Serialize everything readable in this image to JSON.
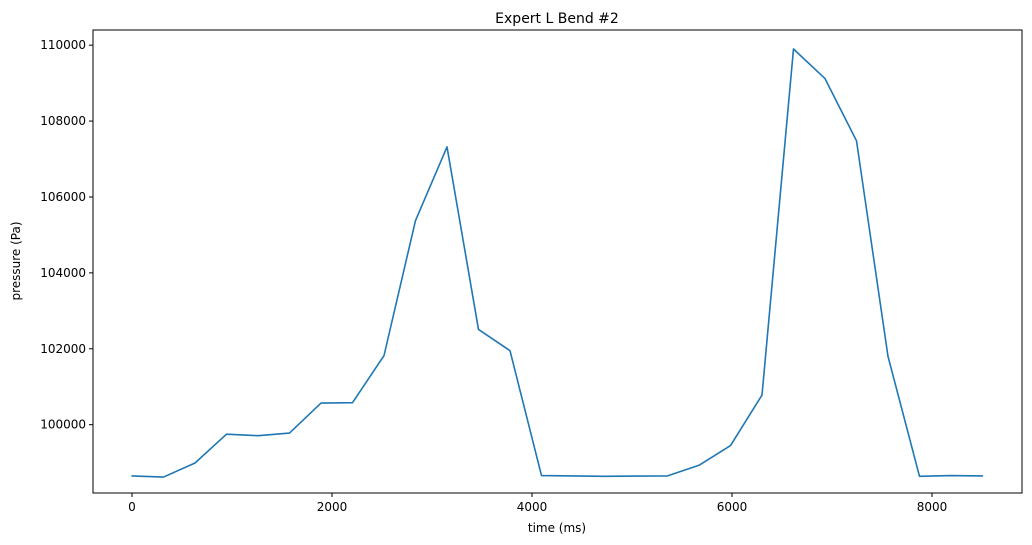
{
  "chart_data": {
    "type": "line",
    "title": "Expert L Bend #2",
    "xlabel": "time (ms)",
    "ylabel": "pressure (Pa)",
    "xlim": [
      -390,
      8900
    ],
    "ylim": [
      98200,
      110400
    ],
    "x_ticks": [
      0,
      2000,
      4000,
      6000,
      8000
    ],
    "x_tick_labels": [
      "0",
      "2000",
      "4000",
      "6000",
      "8000"
    ],
    "y_ticks": [
      100000,
      102000,
      104000,
      106000,
      108000,
      110000
    ],
    "y_tick_labels": [
      "100000",
      "102000",
      "104000",
      "106000",
      "108000",
      "110000"
    ],
    "grid": false,
    "legend": "none",
    "series": [
      {
        "color": "#1f77b4",
        "x": [
          0,
          315,
          630,
          945,
          1260,
          1575,
          1890,
          2205,
          2520,
          2835,
          3150,
          3465,
          3780,
          4095,
          4410,
          4725,
          5040,
          5355,
          5670,
          5985,
          6300,
          6615,
          6930,
          7245,
          7560,
          7875,
          8190,
          8505
        ],
        "y": [
          98650,
          98620,
          98990,
          99750,
          99710,
          99780,
          100570,
          100580,
          101820,
          105380,
          107320,
          102510,
          101950,
          98660,
          98650,
          98640,
          98645,
          98650,
          98930,
          99450,
          100780,
          109900,
          109120,
          107480,
          101800,
          98640,
          98660,
          98650
        ]
      }
    ]
  }
}
